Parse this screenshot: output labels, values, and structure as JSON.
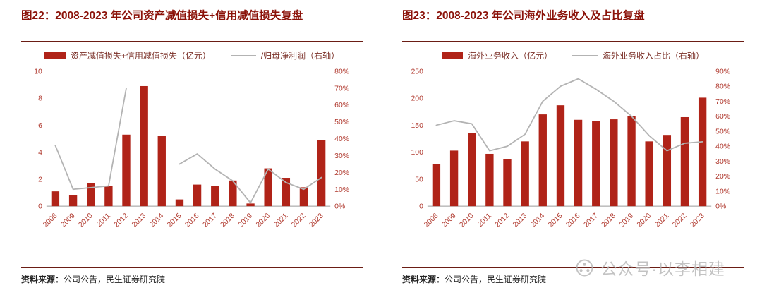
{
  "colors": {
    "bar": "#B02318",
    "line": "#B3B3B3",
    "title": "#8B1209",
    "tick": "#B0392E",
    "legend_text": "#7B3028",
    "rule": "#6B1D14",
    "source": "#222222",
    "watermark": "#B5B5B5"
  },
  "watermark": {
    "text": "公众号·以李相建"
  },
  "chart_data": [
    {
      "type": "bar+line",
      "title": "图22：2008-2023 年公司资产减值损失+信用减值损失复盘",
      "legend": [
        "资产减值损失+信用减值损失（亿元）",
        "/归母净利润（右轴）"
      ],
      "legend_position": "top",
      "grid": false,
      "categories": [
        "2008",
        "2009",
        "2010",
        "2011",
        "2012",
        "2013",
        "2014",
        "2015",
        "2016",
        "2017",
        "2018",
        "2019",
        "2020",
        "2021",
        "2022",
        "2023"
      ],
      "series": [
        {
          "name": "资产减值损失+信用减值损失（亿元）",
          "type": "bar",
          "axis": "left",
          "values": [
            1.1,
            0.8,
            1.7,
            1.5,
            5.3,
            8.9,
            5.2,
            0.5,
            1.6,
            1.5,
            1.9,
            0.2,
            2.8,
            2.1,
            1.4,
            4.9
          ]
        },
        {
          "name": "/归母净利润（右轴）",
          "type": "line",
          "axis": "right",
          "values": [
            36,
            10,
            11,
            12,
            70,
            null,
            null,
            25,
            31,
            22,
            15,
            2,
            22,
            14,
            10,
            17
          ]
        }
      ],
      "left_axis": {
        "min": 0,
        "max": 10,
        "step": 2,
        "suffix": ""
      },
      "right_axis": {
        "min": 0,
        "max": 80,
        "step": 10,
        "suffix": "%"
      },
      "source": {
        "label": "资料来源：",
        "text": "公司公告，民生证券研究院"
      }
    },
    {
      "type": "bar+line",
      "title": "图23：2008-2023 年公司海外业务收入及占比复盘",
      "legend": [
        "海外业务收入（亿元）",
        "海外业务收入占比（右轴）"
      ],
      "legend_position": "top",
      "grid": false,
      "categories": [
        "2008",
        "2009",
        "2010",
        "2011",
        "2012",
        "2013",
        "2014",
        "2015",
        "2016",
        "2017",
        "2018",
        "2019",
        "2020",
        "2021",
        "2022",
        "2023"
      ],
      "series": [
        {
          "name": "海外业务收入（亿元）",
          "type": "bar",
          "axis": "left",
          "values": [
            78,
            103,
            135,
            97,
            87,
            120,
            170,
            187,
            160,
            158,
            161,
            167,
            120,
            132,
            165,
            201
          ]
        },
        {
          "name": "海外业务收入占比（右轴）",
          "type": "line",
          "axis": "right",
          "values": [
            54,
            57,
            55,
            37,
            40,
            48,
            70,
            80,
            85,
            78,
            70,
            60,
            47,
            37,
            42,
            43
          ]
        }
      ],
      "left_axis": {
        "min": 0,
        "max": 250,
        "step": 50,
        "suffix": ""
      },
      "right_axis": {
        "min": 0,
        "max": 90,
        "step": 10,
        "suffix": "%"
      },
      "source": {
        "label": "资料来源：",
        "text": "公司公告，民生证券研究院"
      }
    }
  ]
}
